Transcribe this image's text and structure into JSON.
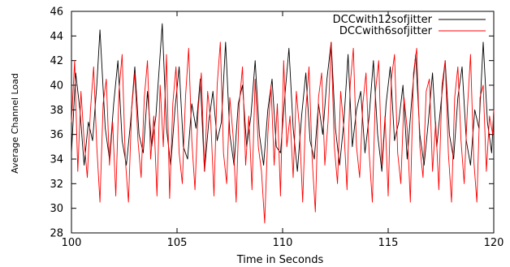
{
  "chart_data": {
    "type": "line",
    "title": "",
    "xlabel": "Time in Seconds",
    "ylabel": "Average Channel Load",
    "xlim": [
      100,
      120
    ],
    "ylim": [
      28,
      46
    ],
    "xticks": [
      100,
      105,
      110,
      115,
      120
    ],
    "yticks": [
      28,
      30,
      32,
      34,
      36,
      38,
      40,
      42,
      44,
      46
    ],
    "grid": false,
    "legend_position": "top-right",
    "series": [
      {
        "name": "DCCwith12sofjitter",
        "color": "#000000",
        "x": [
          100.0,
          100.2,
          100.4,
          100.6,
          100.8,
          101.0,
          101.2,
          101.35,
          101.6,
          101.8,
          102.0,
          102.2,
          102.4,
          102.6,
          102.8,
          103.0,
          103.2,
          103.4,
          103.6,
          103.8,
          104.0,
          104.3,
          104.5,
          104.7,
          104.9,
          105.1,
          105.3,
          105.5,
          105.7,
          105.9,
          106.1,
          106.3,
          106.5,
          106.7,
          106.9,
          107.1,
          107.3,
          107.5,
          107.7,
          107.9,
          108.1,
          108.3,
          108.5,
          108.7,
          108.9,
          109.1,
          109.3,
          109.5,
          109.7,
          109.9,
          110.1,
          110.3,
          110.5,
          110.7,
          110.9,
          111.1,
          111.3,
          111.5,
          111.7,
          111.9,
          112.1,
          112.3,
          112.5,
          112.7,
          112.9,
          113.1,
          113.3,
          113.5,
          113.7,
          113.9,
          114.1,
          114.3,
          114.5,
          114.7,
          114.9,
          115.1,
          115.3,
          115.5,
          115.7,
          115.9,
          116.1,
          116.3,
          116.5,
          116.7,
          116.9,
          117.1,
          117.3,
          117.5,
          117.7,
          117.9,
          118.1,
          118.3,
          118.5,
          118.7,
          118.9,
          119.1,
          119.3,
          119.5,
          119.7,
          119.9,
          120.0
        ],
        "y": [
          34.5,
          41.0,
          38.0,
          33.5,
          37.0,
          35.5,
          40.0,
          44.5,
          36.5,
          34.0,
          38.5,
          42.0,
          35.5,
          33.5,
          37.0,
          41.5,
          36.0,
          34.5,
          39.5,
          35.0,
          37.5,
          45.0,
          36.5,
          33.5,
          38.0,
          41.5,
          35.0,
          34.0,
          38.5,
          36.5,
          40.5,
          33.0,
          37.0,
          39.5,
          35.5,
          37.0,
          43.5,
          36.0,
          33.5,
          38.5,
          40.0,
          35.0,
          37.5,
          42.0,
          36.0,
          33.5,
          38.0,
          40.5,
          35.0,
          34.5,
          39.0,
          43.0,
          36.5,
          33.0,
          37.5,
          41.0,
          35.5,
          34.0,
          38.5,
          36.0,
          40.5,
          43.5,
          36.5,
          33.5,
          37.0,
          42.5,
          35.0,
          38.0,
          39.5,
          34.5,
          37.5,
          42.0,
          36.0,
          33.0,
          38.5,
          41.5,
          35.5,
          37.0,
          40.0,
          34.0,
          38.5,
          42.5,
          36.0,
          33.5,
          37.0,
          41.0,
          35.0,
          38.5,
          42.0,
          36.0,
          34.0,
          39.0,
          41.5,
          35.5,
          33.5,
          38.0,
          36.5,
          43.5,
          37.0,
          34.5,
          38.0
        ]
      },
      {
        "name": "DCCwith6sofjitter",
        "color": "#ff0000",
        "x": [
          100.0,
          100.15,
          100.3,
          100.45,
          100.6,
          100.75,
          100.9,
          101.05,
          101.2,
          101.35,
          101.5,
          101.65,
          101.8,
          101.95,
          102.1,
          102.25,
          102.4,
          102.55,
          102.7,
          102.85,
          103.0,
          103.15,
          103.3,
          103.45,
          103.6,
          103.75,
          103.9,
          104.05,
          104.2,
          104.35,
          104.5,
          104.65,
          104.8,
          104.95,
          105.1,
          105.25,
          105.4,
          105.55,
          105.7,
          105.85,
          106.0,
          106.15,
          106.3,
          106.45,
          106.6,
          106.75,
          106.9,
          107.05,
          107.2,
          107.35,
          107.5,
          107.65,
          107.8,
          107.95,
          108.1,
          108.25,
          108.4,
          108.55,
          108.7,
          108.85,
          109.0,
          109.15,
          109.3,
          109.45,
          109.6,
          109.75,
          109.9,
          110.05,
          110.2,
          110.35,
          110.5,
          110.65,
          110.8,
          110.95,
          111.1,
          111.25,
          111.4,
          111.55,
          111.7,
          111.85,
          112.0,
          112.15,
          112.3,
          112.45,
          112.6,
          112.75,
          112.9,
          113.05,
          113.2,
          113.35,
          113.5,
          113.65,
          113.8,
          113.95,
          114.1,
          114.25,
          114.4,
          114.55,
          114.7,
          114.85,
          115.0,
          115.15,
          115.3,
          115.45,
          115.6,
          115.75,
          115.9,
          116.05,
          116.2,
          116.35,
          116.5,
          116.65,
          116.8,
          116.95,
          117.1,
          117.25,
          117.4,
          117.55,
          117.7,
          117.85,
          118.0,
          118.15,
          118.3,
          118.45,
          118.6,
          118.75,
          118.9,
          119.05,
          119.2,
          119.35,
          119.5,
          119.65,
          119.8,
          119.95,
          120.0
        ],
        "y": [
          37.0,
          42.0,
          33.0,
          39.5,
          35.5,
          32.5,
          38.0,
          41.5,
          35.0,
          30.5,
          38.5,
          40.5,
          33.5,
          37.0,
          31.0,
          39.5,
          42.5,
          34.0,
          30.5,
          38.0,
          41.0,
          35.5,
          32.5,
          39.0,
          42.0,
          34.0,
          37.5,
          31.0,
          40.0,
          35.0,
          42.5,
          30.8,
          38.5,
          41.5,
          34.5,
          32.0,
          39.0,
          43.0,
          35.5,
          31.5,
          38.0,
          41.0,
          33.0,
          39.5,
          37.0,
          31.0,
          40.0,
          43.5,
          34.5,
          32.0,
          39.0,
          36.0,
          30.5,
          38.5,
          41.5,
          33.5,
          37.5,
          31.5,
          40.5,
          35.0,
          33.0,
          28.8,
          36.0,
          40.0,
          33.5,
          38.5,
          31.0,
          42.0,
          35.0,
          37.5,
          32.5,
          39.5,
          36.5,
          30.5,
          38.0,
          41.5,
          34.0,
          29.7,
          39.0,
          41.0,
          33.5,
          37.0,
          43.5,
          35.0,
          32.0,
          39.5,
          36.5,
          31.5,
          40.0,
          43.0,
          35.0,
          32.5,
          38.5,
          41.0,
          34.5,
          30.5,
          39.5,
          42.0,
          33.5,
          37.5,
          31.0,
          40.5,
          42.5,
          34.5,
          32.0,
          39.0,
          36.5,
          30.5,
          41.0,
          43.0,
          35.0,
          32.5,
          39.5,
          40.5,
          33.0,
          37.0,
          31.5,
          40.0,
          42.0,
          34.5,
          30.5,
          39.0,
          41.5,
          35.5,
          32.0,
          38.0,
          42.5,
          34.0,
          30.5,
          39.0,
          40.0,
          33.0,
          37.5,
          36.0,
          38.0
        ]
      }
    ]
  }
}
